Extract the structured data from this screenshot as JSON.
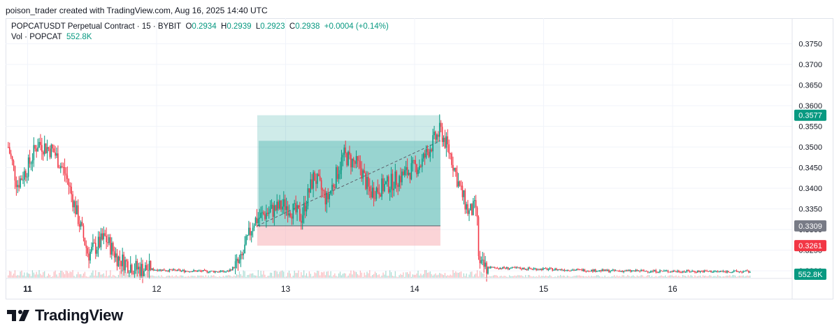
{
  "credit": "poison_trader created with TradingView.com, Aug 16, 2025 14:40 UTC",
  "legend": {
    "symbol": "POPCATUSDT Perpetual Contract · 15 · BYBIT",
    "o_label": "O",
    "o_value": "0.2934",
    "h_label": "H",
    "h_value": "0.2939",
    "l_label": "L",
    "l_value": "0.2923",
    "c_label": "C",
    "c_value": "0.2938",
    "change": "+0.0004 (+0.14%)",
    "vol_label": "Vol · POPCAT",
    "vol_value": "552.8K"
  },
  "colors": {
    "up": "#089981",
    "down": "#f23645",
    "profit_zone": "#26a69a",
    "loss_zone": "#f7a9b0",
    "price_badge_green": "#089981",
    "price_badge_red": "#f23645",
    "price_badge_gray": "#787b86"
  },
  "footer": {
    "brand": "TradingView"
  },
  "chart_data": {
    "type": "candlestick",
    "x_tick_labels": [
      "11",
      "12",
      "13",
      "14",
      "15",
      "16"
    ],
    "y_tick_labels": [
      "0.3200",
      "0.3250",
      "0.3300",
      "0.3350",
      "0.3400",
      "0.3450",
      "0.3500",
      "0.3550",
      "0.3600",
      "0.3650",
      "0.3700",
      "0.3750"
    ],
    "ylim": [
      0.3185,
      0.3785
    ],
    "grid": true,
    "price_tags": [
      {
        "label": "0.3577",
        "value": 0.3577,
        "color": "#089981"
      },
      {
        "label": "0.3309",
        "value": 0.3309,
        "color": "#787b86"
      },
      {
        "label": "0.3261",
        "value": 0.3261,
        "color": "#f23645"
      }
    ],
    "volume_tag": {
      "label": "552.8K",
      "color": "#089981"
    },
    "position_tool": {
      "type": "long",
      "start_day": 12.78,
      "end_day": 14.2,
      "entry": 0.3309,
      "target": 0.3577,
      "stop": 0.3261,
      "filled_top": 0.3515
    },
    "series": [
      {
        "name": "POPCATUSDT",
        "points": [
          {
            "x": 10.85,
            "y": 0.35
          },
          {
            "x": 10.92,
            "y": 0.341
          },
          {
            "x": 11.0,
            "y": 0.345
          },
          {
            "x": 11.08,
            "y": 0.351
          },
          {
            "x": 11.2,
            "y": 0.349
          },
          {
            "x": 11.3,
            "y": 0.343
          },
          {
            "x": 11.38,
            "y": 0.334
          },
          {
            "x": 11.47,
            "y": 0.324
          },
          {
            "x": 11.6,
            "y": 0.328
          },
          {
            "x": 11.7,
            "y": 0.323
          },
          {
            "x": 11.85,
            "y": 0.3205
          },
          {
            "x": 12.2,
            "y": 0.32
          },
          {
            "x": 12.55,
            "y": 0.3198
          },
          {
            "x": 12.65,
            "y": 0.322
          },
          {
            "x": 12.75,
            "y": 0.332
          },
          {
            "x": 12.85,
            "y": 0.334
          },
          {
            "x": 13.0,
            "y": 0.336
          },
          {
            "x": 13.12,
            "y": 0.333
          },
          {
            "x": 13.22,
            "y": 0.343
          },
          {
            "x": 13.32,
            "y": 0.337
          },
          {
            "x": 13.45,
            "y": 0.348
          },
          {
            "x": 13.58,
            "y": 0.345
          },
          {
            "x": 13.65,
            "y": 0.339
          },
          {
            "x": 13.8,
            "y": 0.341
          },
          {
            "x": 13.95,
            "y": 0.344
          },
          {
            "x": 14.05,
            "y": 0.346
          },
          {
            "x": 14.12,
            "y": 0.35
          },
          {
            "x": 14.2,
            "y": 0.354
          },
          {
            "x": 14.28,
            "y": 0.348
          },
          {
            "x": 14.35,
            "y": 0.34
          },
          {
            "x": 14.42,
            "y": 0.334
          },
          {
            "x": 14.48,
            "y": 0.3355
          },
          {
            "x": 14.5,
            "y": 0.321
          },
          {
            "x": 14.55,
            "y": 0.3208
          },
          {
            "x": 15.5,
            "y": 0.32
          },
          {
            "x": 16.6,
            "y": 0.3198
          }
        ]
      }
    ]
  }
}
